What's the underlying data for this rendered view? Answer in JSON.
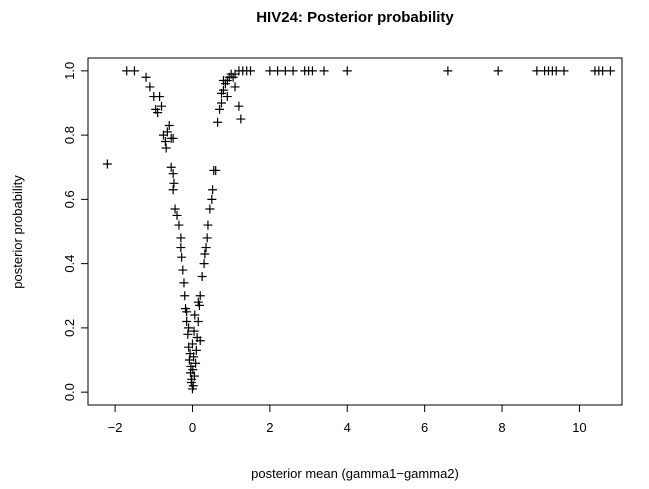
{
  "chart_data": {
    "type": "scatter",
    "title": "HIV24: Posterior probability",
    "x_label": "posterior mean (gamma1−gamma2)",
    "y_label": "posterior probability",
    "color": "#000000",
    "x": [
      -2.2,
      -1.7,
      -1.5,
      -1.2,
      -1.1,
      -1.0,
      -0.95,
      -0.9,
      -0.85,
      -0.8,
      -0.75,
      -0.7,
      -0.68,
      -0.65,
      -0.6,
      -0.55,
      -0.5,
      -0.55,
      -0.5,
      -0.48,
      -0.5,
      -0.45,
      -0.4,
      -0.35,
      -0.3,
      -0.3,
      -0.28,
      -0.25,
      -0.22,
      -0.2,
      -0.18,
      -0.15,
      -0.12,
      -0.1,
      -0.08,
      -0.05,
      -0.03,
      0,
      0.02,
      0.05,
      0.08,
      0.1,
      0.12,
      0.15,
      0.18,
      0.2,
      0.25,
      0.3,
      0.32,
      0.35,
      0.38,
      0.4,
      0.45,
      0.5,
      0.52,
      0.55,
      0.6,
      0.65,
      0.7,
      0.75,
      0.8,
      0.85,
      0.9,
      0.95,
      1.0,
      1.05,
      1.1,
      0.8,
      0.9,
      1.1,
      1.2,
      1.25,
      0.75,
      -0.02,
      0.01,
      0.03,
      -0.04,
      0.0,
      0.04,
      -0.06,
      0.06,
      0.15,
      -0.1,
      0.2,
      -0.15,
      1.2,
      1.3,
      1.4,
      1.5,
      2.0,
      2.2,
      2.4,
      2.6,
      2.9,
      3.0,
      3.1,
      3.4,
      4.0,
      6.6,
      7.9,
      8.9,
      9.1,
      9.2,
      9.3,
      9.4,
      9.6,
      10.4,
      10.5,
      10.6,
      10.8
    ],
    "values": [
      0.71,
      1.0,
      1.0,
      0.98,
      0.95,
      0.92,
      0.88,
      0.87,
      0.92,
      0.89,
      0.8,
      0.78,
      0.76,
      0.81,
      0.83,
      0.79,
      0.79,
      0.7,
      0.68,
      0.65,
      0.63,
      0.57,
      0.55,
      0.52,
      0.48,
      0.45,
      0.42,
      0.38,
      0.34,
      0.3,
      0.26,
      0.22,
      0.18,
      0.14,
      0.1,
      0.06,
      0.03,
      0.01,
      0.02,
      0.05,
      0.09,
      0.13,
      0.17,
      0.22,
      0.27,
      0.3,
      0.36,
      0.4,
      0.43,
      0.45,
      0.48,
      0.52,
      0.57,
      0.6,
      0.63,
      0.69,
      0.69,
      0.84,
      0.88,
      0.93,
      0.94,
      0.96,
      0.97,
      0.98,
      0.99,
      0.98,
      0.99,
      0.97,
      0.92,
      0.95,
      0.89,
      0.85,
      0.9,
      0.04,
      0.07,
      0.11,
      0.08,
      0.15,
      0.19,
      0.12,
      0.24,
      0.28,
      0.2,
      0.16,
      0.25,
      1.0,
      1.0,
      1.0,
      1.0,
      1.0,
      1.0,
      1.0,
      1.0,
      1.0,
      1.0,
      1.0,
      1.0,
      1.0,
      1.0,
      1.0,
      1.0,
      1.0,
      1.0,
      1.0,
      1.0,
      1.0,
      1.0,
      1.0,
      1.0,
      1.0
    ],
    "xlim": [
      -2.7,
      11.1
    ],
    "ylim": [
      -0.04,
      1.04
    ],
    "xticks": [
      {
        "value": -2,
        "label": "−2"
      },
      0,
      2,
      4,
      6,
      8,
      10
    ],
    "yticks": [
      {
        "value": 0,
        "label": "0.0"
      },
      {
        "value": 0.2,
        "label": "0.2"
      },
      {
        "value": 0.4,
        "label": "0.4"
      },
      {
        "value": 0.6,
        "label": "0.6"
      },
      {
        "value": 0.8,
        "label": "0.8"
      },
      {
        "value": 1,
        "label": "1.0"
      }
    ]
  }
}
